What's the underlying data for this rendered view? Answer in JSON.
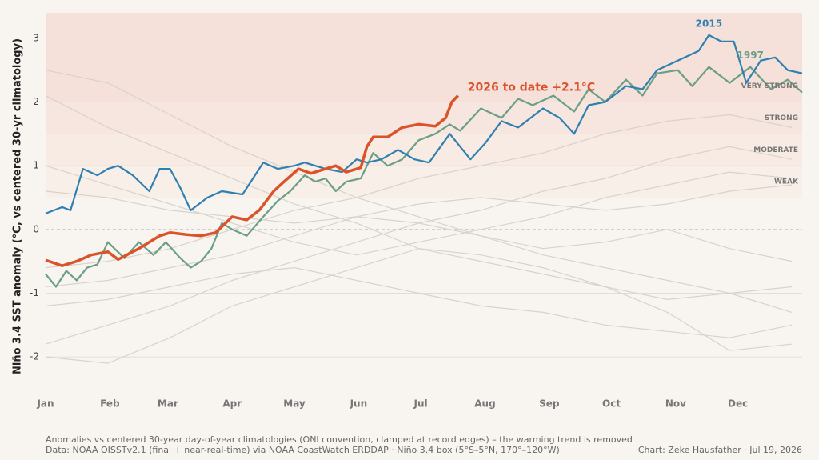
{
  "chart_data": {
    "type": "line",
    "y_label": "Niño 3.4 SST anomaly (°C, vs centered 30-yr climatology)",
    "xlim": [
      0,
      365
    ],
    "xticks": [
      {
        "value": 0,
        "label": "Jan"
      },
      {
        "value": 31,
        "label": "Feb"
      },
      {
        "value": 59,
        "label": "Mar"
      },
      {
        "value": 90,
        "label": "Apr"
      },
      {
        "value": 120,
        "label": "May"
      },
      {
        "value": 151,
        "label": "Jun"
      },
      {
        "value": 181,
        "label": "Jul"
      },
      {
        "value": 212,
        "label": "Aug"
      },
      {
        "value": 243,
        "label": "Sep"
      },
      {
        "value": 273,
        "label": "Oct"
      },
      {
        "value": 304,
        "label": "Nov"
      },
      {
        "value": 334,
        "label": "Dec"
      }
    ],
    "ylim": [
      -2.35,
      3.4
    ],
    "yticks": [
      -2,
      -1,
      0,
      1,
      2,
      3
    ],
    "grid": true,
    "bands": [
      {
        "label": "WEAK",
        "from": 0.5,
        "to": 1.0,
        "color": "#f8efe8"
      },
      {
        "label": "MODERATE",
        "from": 1.0,
        "to": 1.5,
        "color": "#f7ebe4"
      },
      {
        "label": "STRONG",
        "from": 1.5,
        "to": 2.0,
        "color": "#f6e6df"
      },
      {
        "label": "VERY STRONG",
        "from": 2.0,
        "to": 3.4,
        "color": "#f5e1da"
      }
    ],
    "series": [
      {
        "color": "#d8d2ca",
        "x": [
          0,
          30,
          60,
          90,
          120,
          150,
          180,
          210,
          240,
          270,
          300,
          330,
          360
        ],
        "values": [
          2.1,
          1.6,
          1.2,
          0.8,
          0.4,
          0.1,
          -0.3,
          -0.5,
          -0.7,
          -0.9,
          -1.1,
          -1.0,
          -0.9
        ]
      },
      {
        "color": "#d8d2ca",
        "x": [
          0,
          30,
          60,
          90,
          120,
          150,
          180,
          210,
          240,
          270,
          300,
          330,
          360
        ],
        "values": [
          -1.8,
          -1.5,
          -1.2,
          -0.8,
          -0.5,
          -0.2,
          0.1,
          0.3,
          0.6,
          0.8,
          1.1,
          1.3,
          1.1
        ]
      },
      {
        "color": "#d8d2ca",
        "x": [
          0,
          30,
          60,
          90,
          120,
          150,
          180,
          210,
          240,
          270,
          300,
          330,
          360
        ],
        "values": [
          2.5,
          2.3,
          1.8,
          1.3,
          0.9,
          0.5,
          0.2,
          -0.1,
          -0.4,
          -0.6,
          -0.8,
          -1.0,
          -1.3
        ]
      },
      {
        "color": "#d8d2ca",
        "x": [
          0,
          30,
          60,
          90,
          120,
          150,
          180,
          210,
          240,
          270,
          300,
          330,
          360
        ],
        "values": [
          -0.6,
          -0.5,
          -0.3,
          0.0,
          0.3,
          0.5,
          0.8,
          1.0,
          1.2,
          1.5,
          1.7,
          1.8,
          1.6
        ]
      },
      {
        "color": "#d8d2ca",
        "x": [
          0,
          30,
          60,
          90,
          120,
          150,
          180,
          210,
          240,
          270,
          300,
          330,
          360
        ],
        "values": [
          -1.2,
          -1.1,
          -0.9,
          -0.7,
          -0.6,
          -0.8,
          -1.0,
          -1.2,
          -1.3,
          -1.5,
          -1.6,
          -1.7,
          -1.5
        ]
      },
      {
        "color": "#d8d2ca",
        "x": [
          0,
          30,
          60,
          90,
          120,
          150,
          180,
          210,
          240,
          270,
          300,
          330,
          360
        ],
        "values": [
          0.6,
          0.5,
          0.3,
          0.2,
          0.1,
          0.2,
          0.4,
          0.5,
          0.4,
          0.3,
          0.4,
          0.6,
          0.7
        ]
      },
      {
        "color": "#d8d2ca",
        "x": [
          0,
          30,
          60,
          90,
          120,
          150,
          180,
          210,
          240,
          270,
          300,
          330,
          360
        ],
        "values": [
          -2.0,
          -2.1,
          -1.7,
          -1.2,
          -0.9,
          -0.6,
          -0.3,
          -0.4,
          -0.6,
          -0.9,
          -1.3,
          -1.9,
          -1.8
        ]
      },
      {
        "color": "#d8d2ca",
        "x": [
          0,
          30,
          60,
          90,
          120,
          150,
          180,
          210,
          240,
          270,
          300,
          330,
          360
        ],
        "values": [
          1.0,
          0.7,
          0.4,
          0.1,
          -0.2,
          -0.4,
          -0.2,
          0.0,
          0.2,
          0.5,
          0.7,
          0.9,
          0.8
        ]
      },
      {
        "color": "#d8d2ca",
        "x": [
          0,
          30,
          60,
          90,
          120,
          150,
          180,
          210,
          240,
          270,
          300,
          330,
          360
        ],
        "values": [
          -0.9,
          -0.8,
          -0.6,
          -0.4,
          -0.1,
          0.2,
          0.1,
          -0.1,
          -0.3,
          -0.2,
          0.0,
          -0.3,
          -0.5
        ]
      },
      {
        "name": "1997",
        "color": "#6a9f85",
        "x": [
          0,
          5,
          10,
          15,
          20,
          25,
          30,
          38,
          45,
          52,
          58,
          65,
          70,
          75,
          80,
          85,
          90,
          97,
          105,
          112,
          118,
          125,
          130,
          135,
          140,
          145,
          152,
          158,
          165,
          172,
          180,
          188,
          195,
          200,
          210,
          220,
          228,
          235,
          245,
          255,
          262,
          270,
          280,
          288,
          295,
          305,
          312,
          320,
          330,
          340,
          350,
          358,
          365
        ],
        "values": [
          -0.7,
          -0.9,
          -0.65,
          -0.8,
          -0.6,
          -0.55,
          -0.2,
          -0.45,
          -0.2,
          -0.4,
          -0.2,
          -0.45,
          -0.6,
          -0.5,
          -0.3,
          0.1,
          0.0,
          -0.1,
          0.2,
          0.45,
          0.6,
          0.85,
          0.75,
          0.8,
          0.6,
          0.75,
          0.8,
          1.2,
          1.0,
          1.1,
          1.4,
          1.5,
          1.65,
          1.55,
          1.9,
          1.75,
          2.05,
          1.95,
          2.1,
          1.85,
          2.2,
          2.0,
          2.35,
          2.1,
          2.45,
          2.5,
          2.25,
          2.55,
          2.3,
          2.55,
          2.2,
          2.35,
          2.15
        ]
      },
      {
        "name": "2015",
        "color": "#2f7fb0",
        "x": [
          0,
          8,
          12,
          18,
          25,
          30,
          35,
          42,
          50,
          55,
          60,
          65,
          70,
          78,
          85,
          95,
          100,
          105,
          112,
          120,
          125,
          135,
          143,
          150,
          155,
          162,
          170,
          178,
          185,
          195,
          205,
          212,
          220,
          228,
          240,
          248,
          255,
          262,
          270,
          280,
          288,
          295,
          305,
          315,
          320,
          326,
          332,
          338,
          345,
          352,
          358,
          365
        ],
        "values": [
          0.25,
          0.35,
          0.3,
          0.95,
          0.85,
          0.95,
          1.0,
          0.85,
          0.6,
          0.95,
          0.95,
          0.65,
          0.3,
          0.5,
          0.6,
          0.55,
          0.8,
          1.05,
          0.95,
          1.0,
          1.05,
          0.95,
          0.9,
          1.1,
          1.05,
          1.1,
          1.25,
          1.1,
          1.05,
          1.5,
          1.1,
          1.35,
          1.7,
          1.6,
          1.9,
          1.75,
          1.5,
          1.95,
          2.0,
          2.25,
          2.2,
          2.5,
          2.65,
          2.8,
          3.05,
          2.95,
          2.95,
          2.3,
          2.65,
          2.7,
          2.5,
          2.45
        ]
      },
      {
        "name": "2026 to date  +2.1°C",
        "color": "#d9532b",
        "x": [
          0,
          8,
          15,
          22,
          30,
          35,
          45,
          55,
          60,
          68,
          75,
          82,
          90,
          97,
          103,
          110,
          115,
          122,
          128,
          135,
          140,
          145,
          152,
          155,
          158,
          165,
          172,
          180,
          188,
          193,
          196,
          199
        ],
        "values": [
          -0.48,
          -0.57,
          -0.5,
          -0.4,
          -0.35,
          -0.47,
          -0.3,
          -0.1,
          -0.05,
          -0.08,
          -0.1,
          -0.05,
          0.2,
          0.15,
          0.3,
          0.6,
          0.75,
          0.95,
          0.88,
          0.95,
          1.0,
          0.9,
          0.97,
          1.3,
          1.45,
          1.45,
          1.6,
          1.65,
          1.62,
          1.75,
          2.0,
          2.1
        ]
      }
    ],
    "notes": [
      "Anomalies vs centered 30-year day-of-year climatologies (ONI convention, clamped at record edges) – the warming trend is removed",
      "Data: NOAA OISSTv2.1 (final + near-real-time) via NOAA CoastWatch ERDDAP · Niño 3.4 box (5°S–5°N, 170°–120°W)"
    ],
    "credit": "Chart: Zeke Hausfather · Jul 19, 2026"
  }
}
